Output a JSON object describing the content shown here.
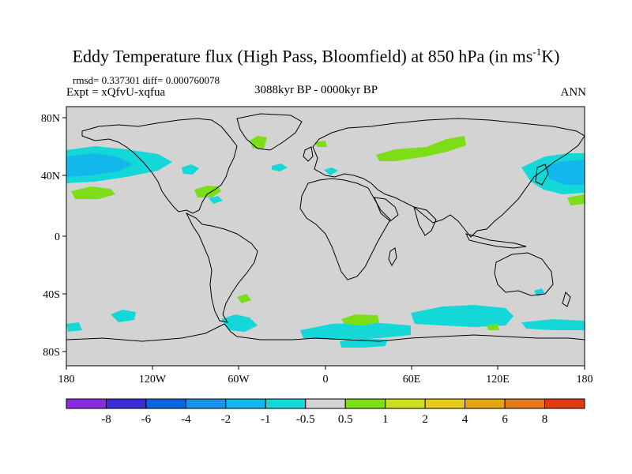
{
  "title": {
    "main": "Eddy Temperature flux (High Pass, Bloomfield) at 850 hPa (in ms",
    "sup": "-1",
    "end": "K)"
  },
  "header": {
    "rmsd_text": "rmsd= 0.337301 diff= 0.000760078",
    "expt_text": "Expt = xQfvU-xqfua",
    "period_text": "3088kyr BP - 0000kyr BP",
    "season_text": "ANN"
  },
  "lat_labels": [
    "80N",
    "40N",
    "0",
    "40S",
    "80S"
  ],
  "lon_labels": [
    "180",
    "120W",
    "60W",
    "0",
    "60E",
    "120E",
    "180"
  ],
  "colorbar": {
    "colors": [
      "#8a2be2",
      "#3a2fd6",
      "#0b65e0",
      "#1a93e8",
      "#12b8ec",
      "#14d8d8",
      "#d3d3d3",
      "#7ddd16",
      "#c9df20",
      "#e8c81a",
      "#e6a413",
      "#e2791b",
      "#e03a14"
    ],
    "labels": [
      "-8",
      "-6",
      "-4",
      "-2",
      "-1",
      "-0.5",
      "0.5",
      "1",
      "2",
      "4",
      "6",
      "8"
    ]
  },
  "colors": {
    "background": "#d3d3d3",
    "coast": "#000000"
  }
}
